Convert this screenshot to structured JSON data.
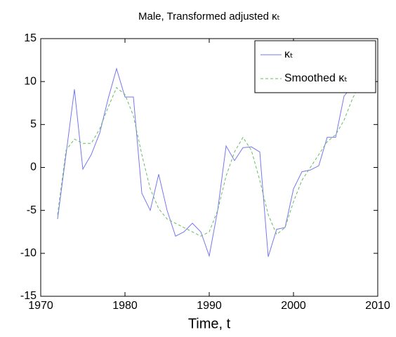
{
  "chart_data": {
    "type": "line",
    "title": "Male, Transformed adjusted κₜ",
    "xlabel": "Time, t",
    "x": [
      1972,
      1973,
      1974,
      1975,
      1976,
      1977,
      1978,
      1979,
      1980,
      1981,
      1982,
      1983,
      1984,
      1985,
      1986,
      1987,
      1988,
      1989,
      1990,
      1991,
      1992,
      1993,
      1994,
      1995,
      1996,
      1997,
      1998,
      1999,
      2000,
      2001,
      2002,
      2003,
      2004,
      2005,
      2006,
      2007,
      2008
    ],
    "series": [
      {
        "name": "κₜ",
        "color": "#7777ee",
        "dash": "solid",
        "values": [
          -6,
          1.5,
          9.1,
          -0.2,
          1.5,
          4,
          8,
          11.5,
          8.2,
          8.2,
          -3,
          -5,
          -0.8,
          -5,
          -8,
          -7.5,
          -6.5,
          -7.5,
          -10.3,
          -5,
          2.5,
          0.8,
          2.3,
          2.4,
          1.8,
          -10.4,
          -7.2,
          -7,
          -2.5,
          -0.5,
          -0.3,
          0.2,
          3.5,
          3.5,
          8.3,
          9.5,
          11
        ]
      },
      {
        "name": "Smoothed κₜ",
        "color": "#66bb66",
        "dash": "dashed",
        "values": [
          -5.5,
          2,
          3.3,
          2.8,
          2.8,
          4.5,
          7,
          9.3,
          8.5,
          6,
          1.5,
          -2.5,
          -4.8,
          -6,
          -6.5,
          -7,
          -7.5,
          -8,
          -7.5,
          -5,
          -1,
          1.8,
          3.5,
          2,
          -1.5,
          -5.5,
          -7.8,
          -7,
          -4,
          -1.5,
          0,
          1.5,
          3,
          3.8,
          5.5,
          8,
          10
        ]
      }
    ],
    "xlim": [
      1970,
      2010
    ],
    "xticks": [
      1970,
      1980,
      1990,
      2000,
      2010
    ],
    "ylim": [
      -15,
      15
    ],
    "yticks": [
      -15,
      -10,
      -5,
      0,
      5,
      10,
      15
    ],
    "grid": false,
    "legend": "northeast"
  }
}
